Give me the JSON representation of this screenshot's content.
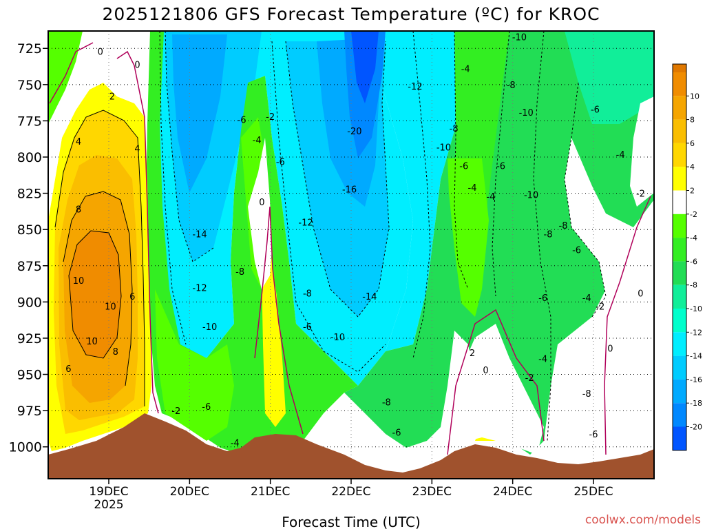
{
  "chart_data": {
    "type": "heatmap",
    "title": "2025121806 GFS Forecast Temperature (ºC) for KROC",
    "xlabel": "Forecast Time (UTC)",
    "ylabel": "",
    "credit": "coolwx.com/models",
    "y_ticks": [
      "725",
      "750",
      "775",
      "800",
      "825",
      "850",
      "875",
      "900",
      "925",
      "950",
      "975",
      "1000"
    ],
    "y_values": [
      725,
      750,
      775,
      800,
      825,
      850,
      875,
      900,
      925,
      950,
      975,
      1000
    ],
    "ylim": [
      1022,
      713
    ],
    "x_ticks": [
      {
        "label": "19DEC",
        "sub": "2025",
        "hour": 18
      },
      {
        "label": "20DEC",
        "sub": "",
        "hour": 42
      },
      {
        "label": "21DEC",
        "sub": "",
        "hour": 66
      },
      {
        "label": "22DEC",
        "sub": "",
        "hour": 90
      },
      {
        "label": "23DEC",
        "sub": "",
        "hour": 114
      },
      {
        "label": "24DEC",
        "sub": "",
        "hour": 138
      },
      {
        "label": "25DEC",
        "sub": "",
        "hour": 162
      }
    ],
    "xlim": [
      0,
      180
    ],
    "colorbar": {
      "levels": [
        {
          "label": "10",
          "color": "#f08c00"
        },
        {
          "label": "8",
          "color": "#f5a500"
        },
        {
          "label": "6",
          "color": "#fabe00"
        },
        {
          "label": "4",
          "color": "#ffd700"
        },
        {
          "label": "2",
          "color": "#ffff00"
        },
        {
          "label": "-2",
          "color": "#ffffff"
        },
        {
          "label": "-4",
          "color": "#55ff00"
        },
        {
          "label": "-6",
          "color": "#33ee22"
        },
        {
          "label": "-8",
          "color": "#22dd55"
        },
        {
          "label": "-10",
          "color": "#11ee99"
        },
        {
          "label": "-12",
          "color": "#00ffcc"
        },
        {
          "label": "-14",
          "color": "#00eeff"
        },
        {
          "label": "-16",
          "color": "#00ccff"
        },
        {
          "label": "-18",
          "color": "#00aaff"
        },
        {
          "label": "-20",
          "color": "#0088ff"
        },
        {
          "label": "",
          "color": "#0055ff"
        }
      ],
      "top_color": "#e07800"
    },
    "contour_labels": [
      {
        "text": "0",
        "hour": 15.5,
        "p": 727
      },
      {
        "text": "0",
        "hour": 26.5,
        "p": 736
      },
      {
        "text": "2",
        "hour": 19,
        "p": 758
      },
      {
        "text": "4",
        "hour": 9,
        "p": 789
      },
      {
        "text": "4",
        "hour": 26.5,
        "p": 794
      },
      {
        "text": "8",
        "hour": 9,
        "p": 836
      },
      {
        "text": "10",
        "hour": 9,
        "p": 885
      },
      {
        "text": "10",
        "hour": 18.5,
        "p": 903
      },
      {
        "text": "6",
        "hour": 25,
        "p": 896
      },
      {
        "text": "10",
        "hour": 13,
        "p": 927
      },
      {
        "text": "8",
        "hour": 20,
        "p": 934
      },
      {
        "text": "6",
        "hour": 6,
        "p": 946
      },
      {
        "text": "-2",
        "hour": 38,
        "p": 975
      },
      {
        "text": "-6",
        "hour": 47,
        "p": 972
      },
      {
        "text": "-14",
        "hour": 45,
        "p": 853
      },
      {
        "text": "-12",
        "hour": 45,
        "p": 890
      },
      {
        "text": "-10",
        "hour": 48,
        "p": 917
      },
      {
        "text": "-8",
        "hour": 57,
        "p": 879
      },
      {
        "text": "-6",
        "hour": 57.5,
        "p": 774
      },
      {
        "text": "-4",
        "hour": 62,
        "p": 788
      },
      {
        "text": "-2",
        "hour": 66,
        "p": 772
      },
      {
        "text": "0",
        "hour": 63.5,
        "p": 831
      },
      {
        "text": "-6",
        "hour": 69,
        "p": 803
      },
      {
        "text": "-4",
        "hour": 55.5,
        "p": 997
      },
      {
        "text": "-12",
        "hour": 76.5,
        "p": 845
      },
      {
        "text": "-8",
        "hour": 77,
        "p": 894
      },
      {
        "text": "-6",
        "hour": 77,
        "p": 917
      },
      {
        "text": "-10",
        "hour": 86,
        "p": 924
      },
      {
        "text": "-14",
        "hour": 95.5,
        "p": 896
      },
      {
        "text": "-16",
        "hour": 89.5,
        "p": 822
      },
      {
        "text": "-20",
        "hour": 91,
        "p": 782
      },
      {
        "text": "-12",
        "hour": 109,
        "p": 751
      },
      {
        "text": "-10",
        "hour": 117.5,
        "p": 793
      },
      {
        "text": "-8",
        "hour": 120.5,
        "p": 780
      },
      {
        "text": "-6",
        "hour": 123.5,
        "p": 806
      },
      {
        "text": "-4",
        "hour": 126,
        "p": 821
      },
      {
        "text": "-4",
        "hour": 124,
        "p": 739
      },
      {
        "text": "-8",
        "hour": 100.5,
        "p": 969
      },
      {
        "text": "-6",
        "hour": 103.5,
        "p": 990
      },
      {
        "text": "-4",
        "hour": 131.5,
        "p": 827
      },
      {
        "text": "-6",
        "hour": 134.5,
        "p": 806
      },
      {
        "text": "-8",
        "hour": 137.5,
        "p": 750
      },
      {
        "text": "-10",
        "hour": 140,
        "p": 717
      },
      {
        "text": "-10",
        "hour": 142,
        "p": 769
      },
      {
        "text": "-10",
        "hour": 143.5,
        "p": 826
      },
      {
        "text": "-8",
        "hour": 148.5,
        "p": 853
      },
      {
        "text": "-8",
        "hour": 153,
        "p": 847
      },
      {
        "text": "-6",
        "hour": 157,
        "p": 864
      },
      {
        "text": "-6",
        "hour": 162.5,
        "p": 767
      },
      {
        "text": "-4",
        "hour": 170,
        "p": 798
      },
      {
        "text": "-2",
        "hour": 176,
        "p": 825
      },
      {
        "text": "-6",
        "hour": 147,
        "p": 897
      },
      {
        "text": "-4",
        "hour": 147,
        "p": 939
      },
      {
        "text": "-2",
        "hour": 143,
        "p": 952
      },
      {
        "text": "-4",
        "hour": 160,
        "p": 897
      },
      {
        "text": "-2",
        "hour": 164,
        "p": 903
      },
      {
        "text": "0",
        "hour": 176,
        "p": 894
      },
      {
        "text": "0",
        "hour": 167,
        "p": 932
      },
      {
        "text": "-8",
        "hour": 160,
        "p": 963
      },
      {
        "text": "-6",
        "hour": 162,
        "p": 991
      },
      {
        "text": "2",
        "hour": 126,
        "p": 935
      },
      {
        "text": "0",
        "hour": 130,
        "p": 947
      }
    ]
  }
}
